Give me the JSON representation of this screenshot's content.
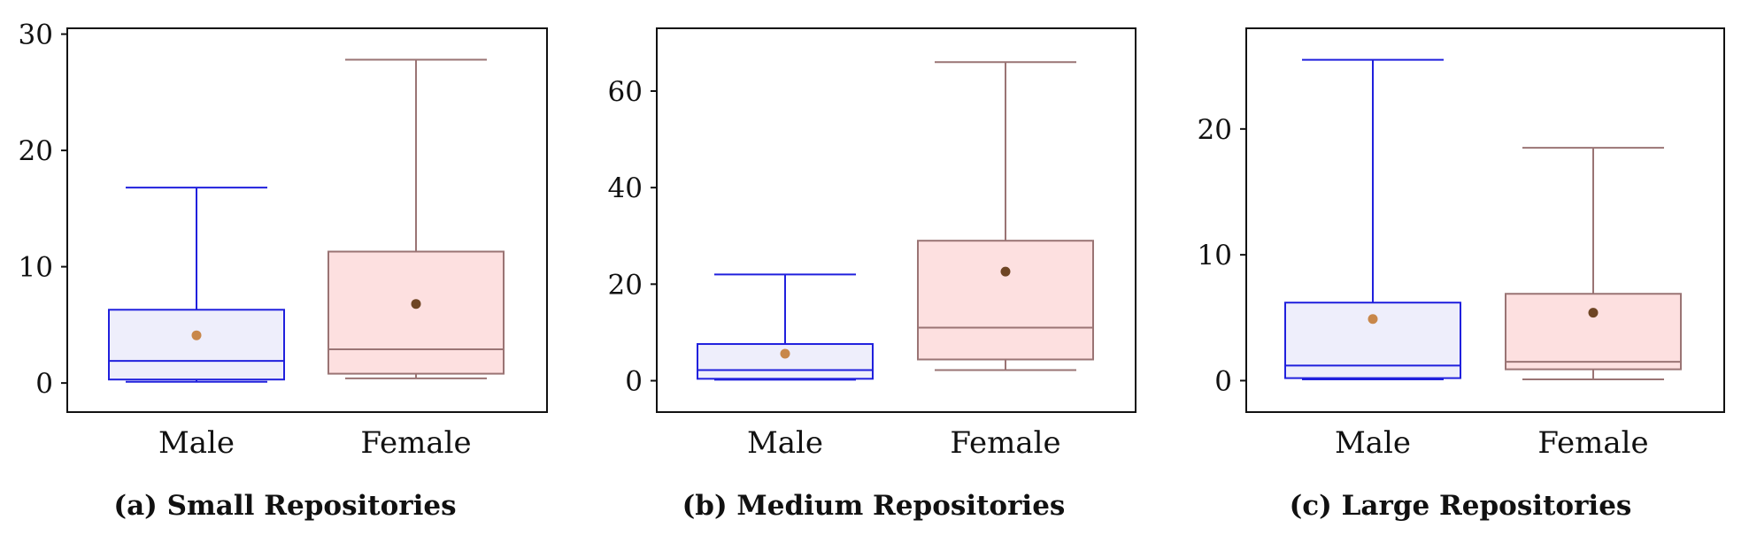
{
  "chart_data": [
    {
      "type": "box",
      "caption": "(a) Small Repositories",
      "ylim": [
        -2.5,
        30.5
      ],
      "yticks": [
        0,
        10,
        20,
        30
      ],
      "categories": [
        "Male",
        "Female"
      ],
      "boxes": [
        {
          "category": "Male",
          "whisker_low": 0.1,
          "q1": 0.3,
          "median": 1.9,
          "q3": 6.3,
          "whisker_high": 16.8,
          "mean": 4.1
        },
        {
          "category": "Female",
          "whisker_low": 0.4,
          "q1": 0.8,
          "median": 2.9,
          "q3": 11.3,
          "whisker_high": 27.8,
          "mean": 6.8
        }
      ]
    },
    {
      "type": "box",
      "caption": "(b) Medium Repositories",
      "ylim": [
        -6.5,
        73
      ],
      "yticks": [
        0,
        20,
        40,
        60
      ],
      "categories": [
        "Male",
        "Female"
      ],
      "boxes": [
        {
          "category": "Male",
          "whisker_low": 0.2,
          "q1": 0.4,
          "median": 2.2,
          "q3": 7.6,
          "whisker_high": 22.0,
          "mean": 5.6
        },
        {
          "category": "Female",
          "whisker_low": 2.2,
          "q1": 4.4,
          "median": 11.0,
          "q3": 29.0,
          "whisker_high": 66.0,
          "mean": 22.6
        }
      ]
    },
    {
      "type": "box",
      "caption": "(c) Large Repositories",
      "ylim": [
        -2.5,
        28
      ],
      "yticks": [
        0,
        10,
        20
      ],
      "categories": [
        "Male",
        "Female"
      ],
      "boxes": [
        {
          "category": "Male",
          "whisker_low": 0.1,
          "q1": 0.2,
          "median": 1.2,
          "q3": 6.2,
          "whisker_high": 25.5,
          "mean": 4.9
        },
        {
          "category": "Female",
          "whisker_low": 0.1,
          "q1": 0.9,
          "median": 1.5,
          "q3": 6.9,
          "whisker_high": 18.5,
          "mean": 5.4
        }
      ]
    }
  ],
  "colors": {
    "male_stroke": "#2020dd",
    "male_fill": "#eeeefb",
    "male_mean": "#c8874a",
    "female_stroke": "#9a7474",
    "female_fill": "#fde0e0",
    "female_mean": "#6e4524",
    "axis": "#111111"
  }
}
